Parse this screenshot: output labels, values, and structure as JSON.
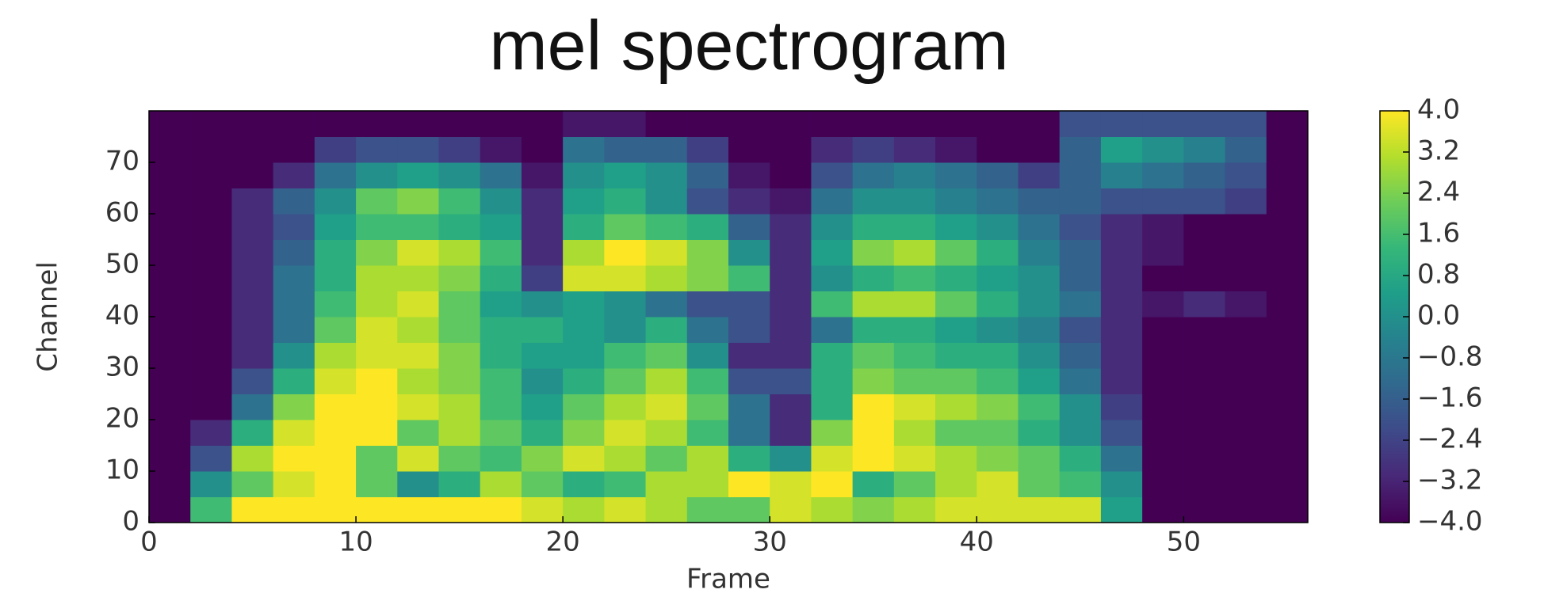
{
  "chart_data": {
    "type": "heatmap",
    "title": "mel spectrogram",
    "x_label": "Frame",
    "y_label": "Channel",
    "colormap": "viridis",
    "x": [
      1,
      3,
      5,
      7,
      9,
      11,
      13,
      15,
      17,
      19,
      21,
      23,
      25,
      27,
      29,
      31,
      33,
      35,
      37,
      39,
      41,
      43,
      45,
      47,
      49,
      51,
      53,
      55
    ],
    "y": [
      2.5,
      7.5,
      12.5,
      17.5,
      22.5,
      27.5,
      32.5,
      37.5,
      42.5,
      47.5,
      52.5,
      57.5,
      62.5,
      67.5,
      72.5,
      77.5
    ],
    "z": [
      [
        -4,
        1.5,
        4,
        4,
        4,
        4,
        4,
        4,
        4,
        3.5,
        3,
        3.5,
        3,
        2,
        2,
        3.5,
        3,
        2.5,
        3,
        3.5,
        3.5,
        3.5,
        3.5,
        0.5,
        -4,
        -4,
        -4,
        -4
      ],
      [
        -4,
        0,
        2,
        3.5,
        4,
        2,
        0,
        1,
        3,
        2,
        1,
        1.5,
        3,
        3,
        4,
        3.5,
        4,
        1,
        2,
        3,
        3.5,
        2,
        1.5,
        0,
        -4,
        -4,
        -4,
        -4
      ],
      [
        -4,
        -2,
        3,
        4,
        4,
        2,
        3.5,
        2,
        1.5,
        2.5,
        3.5,
        3,
        2,
        3,
        1,
        0,
        3.5,
        4,
        3.5,
        3,
        2.5,
        2,
        1,
        -1,
        -4,
        -4,
        -4,
        -4
      ],
      [
        -4,
        -3,
        1,
        3.5,
        4,
        4,
        2,
        3,
        2,
        1,
        2.5,
        3.5,
        3,
        1.5,
        -1,
        -3,
        2.5,
        4,
        3,
        2,
        2,
        1,
        0,
        -2,
        -4,
        -4,
        -4,
        -4
      ],
      [
        -4,
        -4,
        -1,
        2.5,
        4,
        4,
        3.5,
        3,
        1.5,
        0.5,
        2,
        3,
        3.5,
        2,
        -1,
        -3,
        1,
        4,
        3.5,
        3,
        2.5,
        1.5,
        0,
        -2.5,
        -4,
        -4,
        -4,
        -4
      ],
      [
        -4,
        -4,
        -2,
        1,
        3.5,
        4,
        3,
        2.5,
        1.5,
        0,
        1,
        2,
        3,
        1.5,
        -2,
        -2,
        1,
        2.5,
        2,
        2,
        1.5,
        0.5,
        -1,
        -3,
        -4,
        -4,
        -4,
        -4
      ],
      [
        -4,
        -4,
        -3,
        0,
        3,
        3.5,
        3.5,
        2.5,
        1,
        0.5,
        0.5,
        1.5,
        2,
        0,
        -3,
        -3,
        1,
        2,
        1.5,
        1,
        1,
        0,
        -1.5,
        -3,
        -4,
        -4,
        -4,
        -4
      ],
      [
        -4,
        -4,
        -3,
        -1,
        2,
        3.5,
        3,
        2,
        1,
        1,
        0.5,
        0,
        1,
        -1,
        -2,
        -3,
        -1,
        1,
        1,
        0.5,
        0,
        -0.5,
        -2,
        -3,
        -4,
        -4,
        -4,
        -4
      ],
      [
        -4,
        -4,
        -3,
        -1,
        1.5,
        3,
        3.5,
        2,
        0.5,
        0,
        0.5,
        0,
        -1,
        -2,
        -2,
        -3,
        1.5,
        3,
        3,
        2,
        1,
        0,
        -1,
        -3,
        -3.5,
        -3,
        -3.5,
        -4
      ],
      [
        -4,
        -4,
        -3,
        -1,
        1,
        3,
        3,
        2.5,
        1,
        -2.5,
        3.5,
        3.5,
        3,
        2.5,
        1.5,
        -3,
        0,
        1,
        1.5,
        1,
        0.5,
        0,
        -1.5,
        -3,
        -4,
        -4,
        -4,
        -4
      ],
      [
        -4,
        -4,
        -3,
        -1.5,
        1,
        2.5,
        3.5,
        3,
        1.5,
        -3,
        3,
        4,
        3.5,
        2.5,
        0,
        -3,
        0.5,
        2.5,
        3,
        2,
        1,
        -0.5,
        -1.5,
        -3,
        -3.5,
        -4,
        -4,
        -4
      ],
      [
        -4,
        -4,
        -3,
        -2,
        0.5,
        1.5,
        1.5,
        1,
        0.5,
        -3,
        1,
        2,
        1.5,
        1,
        -1.5,
        -3,
        0,
        1,
        1,
        0.5,
        0,
        -1,
        -2,
        -3,
        -3.5,
        -4,
        -4,
        -4
      ],
      [
        -4,
        -4,
        -3,
        -1.5,
        0,
        2,
        2.5,
        1.5,
        0,
        -3,
        0.5,
        1,
        0,
        -2,
        -3,
        -3.5,
        -1,
        0,
        0,
        -0.5,
        -1,
        -1.5,
        -1.5,
        -2,
        -2,
        -2,
        -2.5,
        -4
      ],
      [
        -4,
        -4,
        -4,
        -3,
        -1,
        0,
        0.5,
        0,
        -1,
        -3.5,
        0,
        0.5,
        0,
        -1.5,
        -3.5,
        -4,
        -2,
        -1,
        -0.5,
        -1,
        -1.5,
        -2.5,
        -1.5,
        -0.5,
        -1,
        -1.5,
        -2,
        -4
      ],
      [
        -4,
        -4,
        -4,
        -4,
        -2.5,
        -2,
        -2,
        -2.5,
        -3.5,
        -4,
        -1,
        -1.5,
        -1.5,
        -2.5,
        -4,
        -4,
        -3,
        -2.5,
        -3,
        -3.5,
        -4,
        -4,
        -1.5,
        0.5,
        0,
        -0.5,
        -1.5,
        -4
      ],
      [
        -4,
        -4,
        -4,
        -4,
        -4,
        -4,
        -4,
        -4,
        -4,
        -4,
        -3.5,
        -3.5,
        -4,
        -4,
        -4,
        -4,
        -4,
        -4,
        -4,
        -4,
        -4,
        -4,
        -2,
        -2,
        -2,
        -2,
        -2,
        -4
      ]
    ],
    "xlim": [
      0,
      56
    ],
    "ylim": [
      0,
      80
    ],
    "xticks": [
      0,
      10,
      20,
      30,
      40,
      50
    ],
    "yticks": [
      0,
      10,
      20,
      30,
      40,
      50,
      60,
      70
    ],
    "clim": [
      -4,
      4
    ],
    "cticks": [
      {
        "value": -4,
        "label": "−4.0"
      },
      {
        "value": -3.2,
        "label": "−3.2"
      },
      {
        "value": -2.4,
        "label": "−2.4"
      },
      {
        "value": -1.6,
        "label": "−1.6"
      },
      {
        "value": -0.8,
        "label": "−0.8"
      },
      {
        "value": 0,
        "label": "0.0"
      },
      {
        "value": 0.8,
        "label": "0.8"
      },
      {
        "value": 1.6,
        "label": "1.6"
      },
      {
        "value": 2.4,
        "label": "2.4"
      },
      {
        "value": 3.2,
        "label": "3.2"
      },
      {
        "value": 4,
        "label": "4.0"
      }
    ]
  }
}
